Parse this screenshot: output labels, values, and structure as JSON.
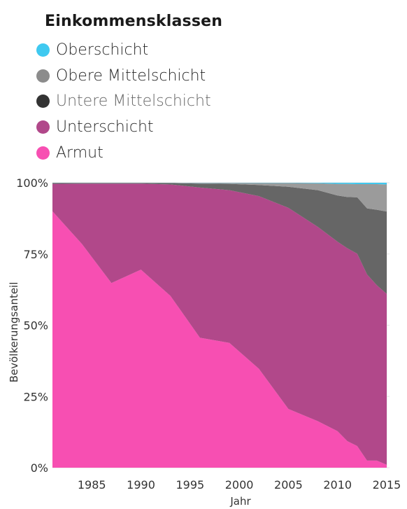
{
  "chart_data": {
    "type": "area",
    "stacked": true,
    "normalized": true,
    "xlabel": "Jahr",
    "ylabel": "Bevölkerungsanteil",
    "xlim": [
      1981,
      2015
    ],
    "ylim": [
      0,
      100
    ],
    "x_ticks": [
      1985,
      1990,
      1995,
      2000,
      2005,
      2010,
      2015
    ],
    "y_ticks": [
      0,
      25,
      50,
      75,
      100
    ],
    "y_tick_labels": [
      "0%",
      "25%",
      "50%",
      "75%",
      "100%"
    ],
    "grid": true,
    "legend": {
      "title": "Einkommensklassen",
      "placement": "top-left",
      "items": [
        {
          "label": "Oberschicht",
          "color": "#3fc9f0"
        },
        {
          "label": "Obere Mittelschicht",
          "color": "#8c8c8c"
        },
        {
          "label": "Untere Mittelschicht",
          "color": "#333333"
        },
        {
          "label": "Unterschicht",
          "color": "#b1488a"
        },
        {
          "label": "Armut",
          "color": "#f74fb2"
        }
      ]
    },
    "x": [
      1981,
      1984,
      1987,
      1990,
      1993,
      1996,
      1999,
      2002,
      2005,
      2008,
      2010,
      2011,
      2012,
      2013,
      2014,
      2015
    ],
    "series": [
      {
        "name": "Armut",
        "color": "#f74fb2",
        "values": [
          90,
          78.5,
          64.8,
          69.5,
          60.3,
          45.6,
          43.8,
          34.7,
          20.6,
          16.3,
          12.8,
          9.3,
          7.6,
          2.5,
          2.5,
          1.0
        ]
      },
      {
        "name": "Unterschicht",
        "color": "#b1488a",
        "values": [
          9.6,
          21.2,
          34.9,
          30.2,
          39.1,
          52.7,
          53.6,
          60.6,
          70.6,
          68.2,
          66.5,
          67.7,
          67.5,
          65.3,
          61.5,
          60.0
        ]
      },
      {
        "name": "Untere Mittelschicht",
        "color": "#666666",
        "values": [
          0.35,
          0.25,
          0.25,
          0.25,
          0.5,
          1.4,
          2.2,
          3.9,
          7.4,
          12.9,
          16.2,
          18.0,
          19.8,
          23.2,
          26.5,
          28.9
        ]
      },
      {
        "name": "Obere Mittelschicht",
        "color": "#9b9b9b",
        "values": [
          0.03,
          0.03,
          0.03,
          0.03,
          0.08,
          0.25,
          0.35,
          0.7,
          1.3,
          2.4,
          4.1,
          4.6,
          4.6,
          8.5,
          9.0,
          9.5
        ]
      },
      {
        "name": "Oberschicht",
        "color": "#3fc9f0",
        "values": [
          0.02,
          0.02,
          0.02,
          0.02,
          0.02,
          0.05,
          0.05,
          0.1,
          0.1,
          0.2,
          0.4,
          0.4,
          0.5,
          0.5,
          0.5,
          0.6
        ]
      }
    ]
  }
}
